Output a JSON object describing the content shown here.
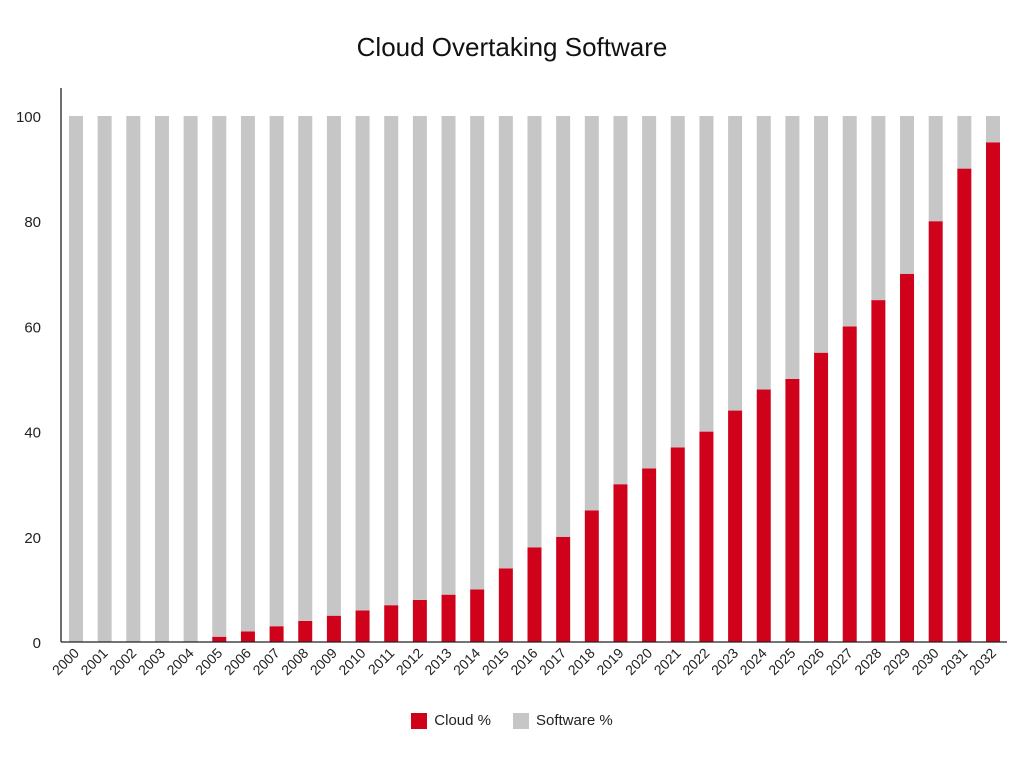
{
  "chart_data": {
    "type": "bar",
    "stacked": true,
    "title": "Cloud Overtaking Software",
    "xlabel": "",
    "ylabel": "",
    "ylim": [
      0,
      100
    ],
    "yticks": [
      0,
      20,
      40,
      60,
      80,
      100
    ],
    "grid": false,
    "legend_position": "bottom",
    "categories": [
      "2000",
      "2001",
      "2002",
      "2003",
      "2004",
      "2005",
      "2006",
      "2007",
      "2008",
      "2009",
      "2010",
      "2011",
      "2012",
      "2013",
      "2014",
      "2015",
      "2016",
      "2017",
      "2018",
      "2019",
      "2020",
      "2021",
      "2022",
      "2023",
      "2024",
      "2025",
      "2026",
      "2027",
      "2028",
      "2029",
      "2030",
      "2031",
      "2032"
    ],
    "series": [
      {
        "name": "Cloud %",
        "color": "#d0021b",
        "values": [
          0,
          0,
          0,
          0,
          0,
          1,
          2,
          3,
          4,
          5,
          6,
          7,
          8,
          9,
          10,
          14,
          18,
          20,
          25,
          30,
          33,
          37,
          40,
          44,
          48,
          50,
          55,
          60,
          65,
          70,
          80,
          90,
          95
        ]
      },
      {
        "name": "Software %",
        "color": "#c6c6c6",
        "values": [
          100,
          100,
          100,
          100,
          100,
          99,
          98,
          97,
          96,
          95,
          94,
          93,
          92,
          91,
          90,
          86,
          82,
          80,
          75,
          70,
          67,
          63,
          60,
          56,
          52,
          50,
          45,
          40,
          35,
          30,
          20,
          10,
          5
        ]
      }
    ]
  }
}
